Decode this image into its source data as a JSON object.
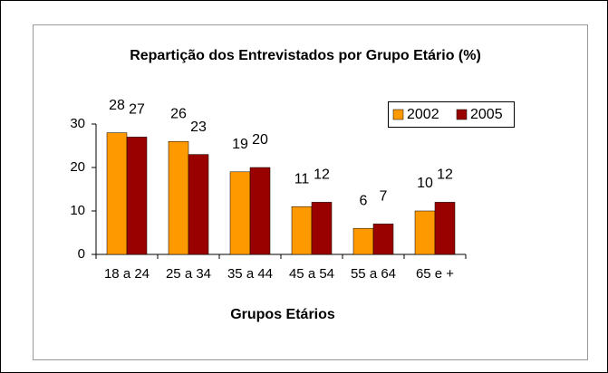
{
  "chart_data": {
    "type": "bar",
    "title": "Repartição dos Entrevistados por Grupo Etário (%)",
    "x_label": "Grupos Etários",
    "categories": [
      "18 a 24",
      "25 a 34",
      "35 a 44",
      "45 a 54",
      "55 a 64",
      "65 e +"
    ],
    "series": [
      {
        "name": "2002",
        "color": "#ff9900",
        "values": [
          28,
          26,
          19,
          11,
          6,
          10
        ]
      },
      {
        "name": "2005",
        "color": "#990000",
        "values": [
          27,
          23,
          20,
          12,
          7,
          12
        ]
      }
    ],
    "ylim": [
      0,
      30
    ],
    "yticks": [
      0,
      10,
      20,
      30
    ],
    "grid": false,
    "legend": "top-right"
  }
}
